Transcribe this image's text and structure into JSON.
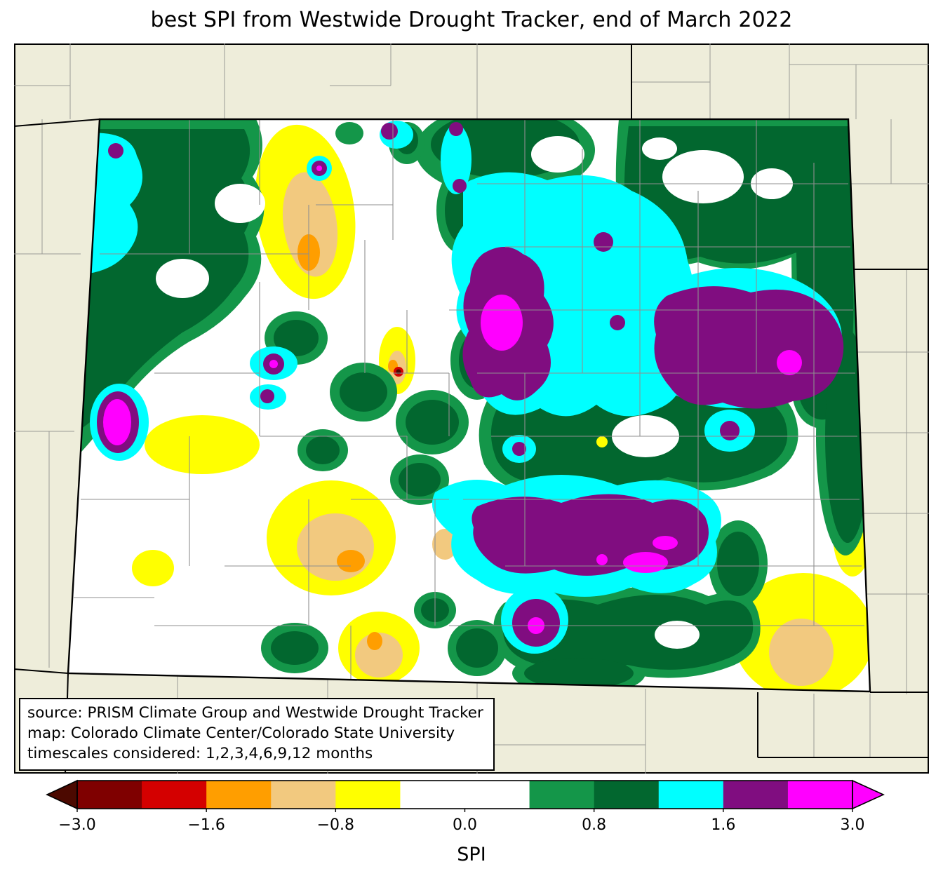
{
  "title": "best SPI from Westwide Drought Tracker, end of March 2022",
  "source_box": {
    "lines": [
      "source: PRISM Climate Group and Westwide Drought Tracker",
      "map: Colorado Climate Center/Colorado State University",
      "timescales considered: 1,2,3,4,6,9,12 months"
    ]
  },
  "colorbar": {
    "label": "SPI",
    "ticks": [
      "−3.0",
      "−1.6",
      "−0.8",
      "0.0",
      "0.8",
      "1.6",
      "3.0"
    ],
    "boundaries": [
      -3.0,
      -2.0,
      -1.6,
      -1.3,
      -0.8,
      -0.5,
      0.0,
      0.5,
      0.8,
      1.3,
      1.6,
      2.0,
      3.0
    ],
    "segment_colors": [
      "#7f0000",
      "#d40000",
      "#ff9e00",
      "#f2c97f",
      "#ffff00",
      "#ffffff",
      "#ffffff",
      "#149649",
      "#02672f",
      "#00ffff",
      "#800d80",
      "#ff00ff"
    ],
    "under_arrow_color": "#4c0900",
    "over_arrow_color": "#ff00ff"
  },
  "colors": {
    "outside_background": "#eeedda",
    "state_interior": "#ffffff",
    "county_line": "#8f8f8f",
    "state_line": "#000000"
  }
}
